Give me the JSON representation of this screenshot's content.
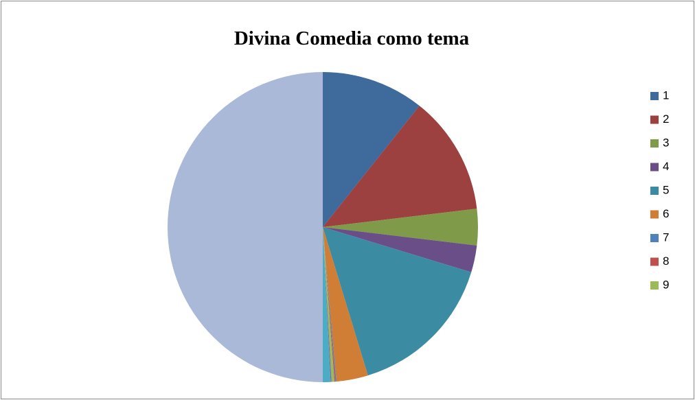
{
  "chart_data": {
    "type": "pie",
    "title": "Divina Comedia como tema",
    "categories": [
      "1",
      "2",
      "3",
      "4",
      "5",
      "6",
      "7",
      "8",
      "9",
      null,
      null,
      null
    ],
    "values": [
      10.7,
      12.4,
      3.8,
      2.8,
      15.6,
      3.3,
      0.1,
      0.1,
      0.3,
      0.1,
      0.8,
      50.0
    ],
    "colors": [
      "#3f6a9c",
      "#9c4040",
      "#7f9a48",
      "#6a4e88",
      "#3b8ca3",
      "#d07d35",
      "#4f81bd",
      "#c0504d",
      "#9bbb59",
      "#8064a2",
      "#4bacc6",
      "#aab9d8"
    ],
    "legend": "right"
  }
}
